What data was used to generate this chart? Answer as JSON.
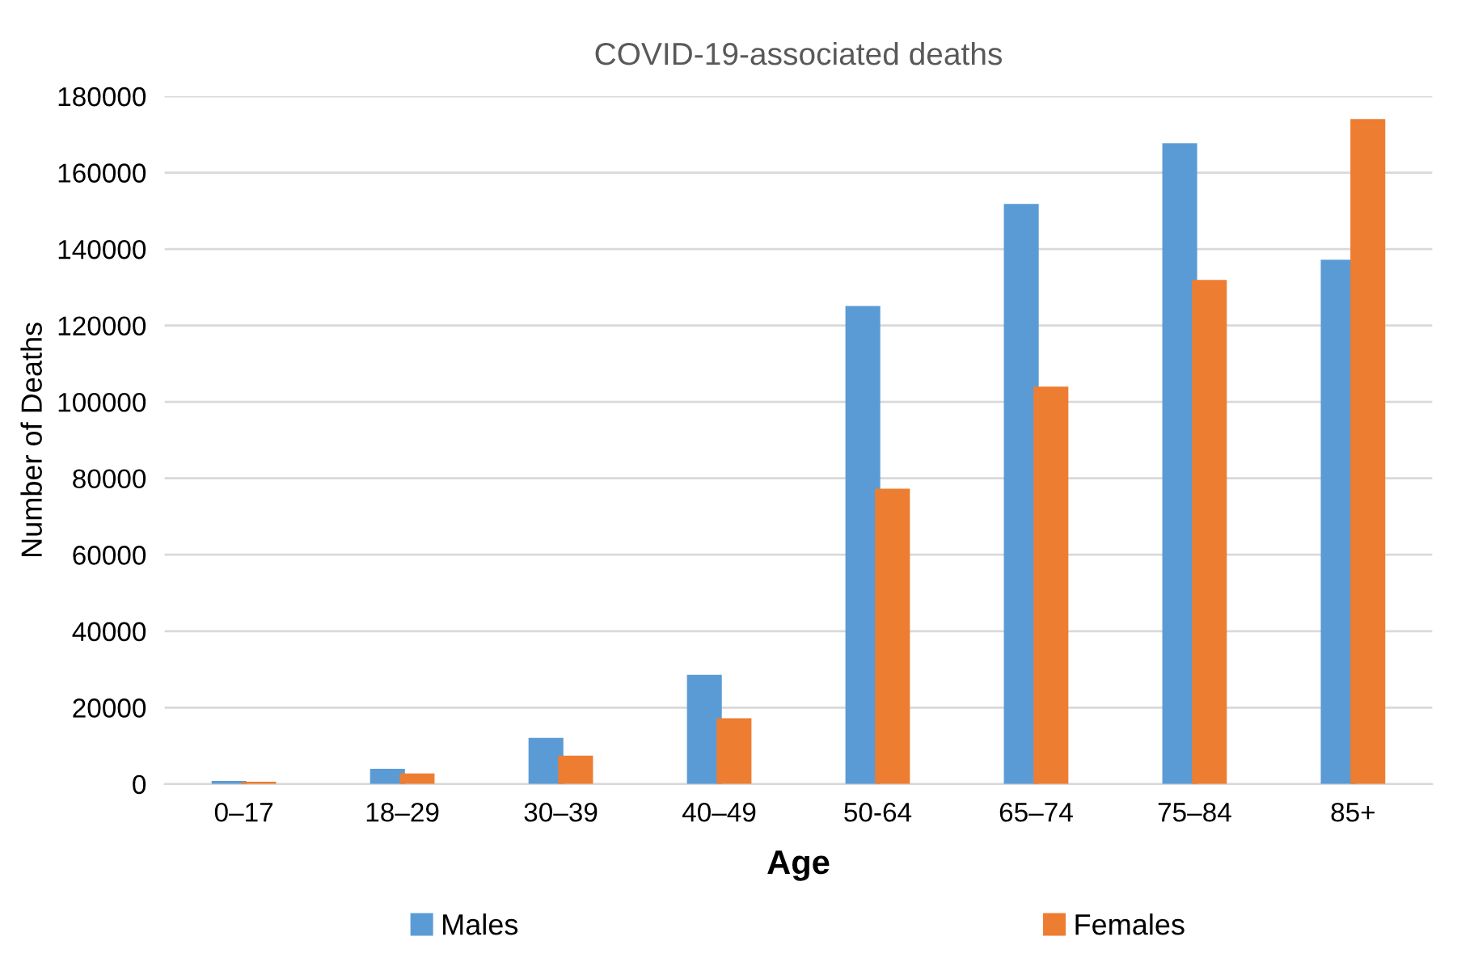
{
  "chart_data": {
    "type": "bar",
    "title": "COVID-19-associated deaths",
    "xlabel": "Age",
    "ylabel": "Number of Deaths",
    "categories": [
      "0–17",
      "18–29",
      "30–39",
      "40–49",
      "50-64",
      "65–74",
      "75–84",
      "85+"
    ],
    "series": [
      {
        "name": "Males",
        "color": "#5b9bd5",
        "values": [
          800,
          4000,
          12100,
          28600,
          125100,
          151800,
          167700,
          137200
        ]
      },
      {
        "name": "Females",
        "color": "#ed7d31",
        "values": [
          600,
          2750,
          7400,
          17200,
          77300,
          104000,
          131900,
          174000
        ]
      }
    ],
    "ylim": [
      0,
      180000
    ],
    "yticks": [
      0,
      20000,
      40000,
      60000,
      80000,
      100000,
      120000,
      140000,
      160000,
      180000
    ],
    "grid": "y",
    "legend": "bottom"
  }
}
